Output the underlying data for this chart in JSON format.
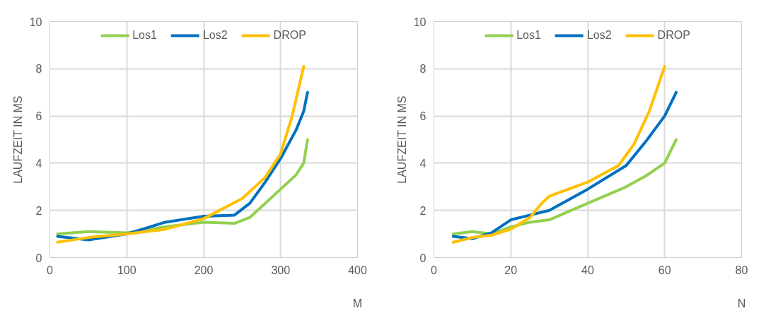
{
  "chart_data": [
    {
      "type": "line",
      "xlabel": "M",
      "ylabel": "LAUFZEIT IN MS",
      "xlim": [
        0,
        400
      ],
      "ylim": [
        0,
        10
      ],
      "xticks": [
        0,
        100,
        200,
        300,
        400
      ],
      "yticks": [
        0,
        2,
        4,
        6,
        8,
        10
      ],
      "grid": true,
      "legend": "top",
      "line_style": "solid",
      "marker": "none",
      "series": [
        {
          "name": "Los1",
          "color": "#92d050",
          "x": [
            10,
            50,
            100,
            150,
            200,
            240,
            260,
            280,
            300,
            320,
            330,
            335
          ],
          "values": [
            1.0,
            1.1,
            1.05,
            1.3,
            1.5,
            1.45,
            1.7,
            2.3,
            2.9,
            3.5,
            4.0,
            5.0
          ]
        },
        {
          "name": "Los2",
          "color": "#0070c0",
          "x": [
            10,
            50,
            100,
            150,
            200,
            240,
            260,
            280,
            300,
            320,
            330,
            335
          ],
          "values": [
            0.9,
            0.75,
            1.0,
            1.5,
            1.75,
            1.8,
            2.3,
            3.2,
            4.2,
            5.4,
            6.2,
            7.0
          ]
        },
        {
          "name": "DROP",
          "color": "#ffc000",
          "x": [
            10,
            50,
            100,
            150,
            200,
            250,
            280,
            300,
            315,
            330
          ],
          "values": [
            0.65,
            0.85,
            1.0,
            1.2,
            1.65,
            2.5,
            3.4,
            4.4,
            6.0,
            8.1
          ]
        }
      ]
    },
    {
      "type": "line",
      "xlabel": "N",
      "ylabel": "LAUFZEIT IN MS",
      "xlim": [
        0,
        80
      ],
      "ylim": [
        0,
        10
      ],
      "xticks": [
        0,
        20,
        40,
        60,
        80
      ],
      "yticks": [
        0,
        2,
        4,
        6,
        8,
        10
      ],
      "grid": true,
      "legend": "top",
      "line_style": "solid",
      "marker": "none",
      "series": [
        {
          "name": "Los1",
          "color": "#92d050",
          "x": [
            5,
            10,
            15,
            20,
            25,
            30,
            40,
            50,
            55,
            60,
            63
          ],
          "values": [
            1.0,
            1.1,
            1.0,
            1.3,
            1.5,
            1.6,
            2.3,
            3.0,
            3.45,
            4.0,
            5.0
          ]
        },
        {
          "name": "Los2",
          "color": "#0070c0",
          "x": [
            5,
            10,
            15,
            20,
            25,
            30,
            40,
            50,
            55,
            60,
            63
          ],
          "values": [
            0.9,
            0.8,
            1.05,
            1.6,
            1.8,
            2.0,
            2.9,
            3.9,
            4.9,
            6.0,
            7.0
          ]
        },
        {
          "name": "DROP",
          "color": "#ffc000",
          "x": [
            5,
            10,
            15,
            20,
            25,
            28,
            30,
            40,
            48,
            52,
            56,
            60
          ],
          "values": [
            0.65,
            0.85,
            0.95,
            1.2,
            1.7,
            2.3,
            2.6,
            3.2,
            3.9,
            4.8,
            6.2,
            8.1
          ]
        }
      ]
    }
  ]
}
